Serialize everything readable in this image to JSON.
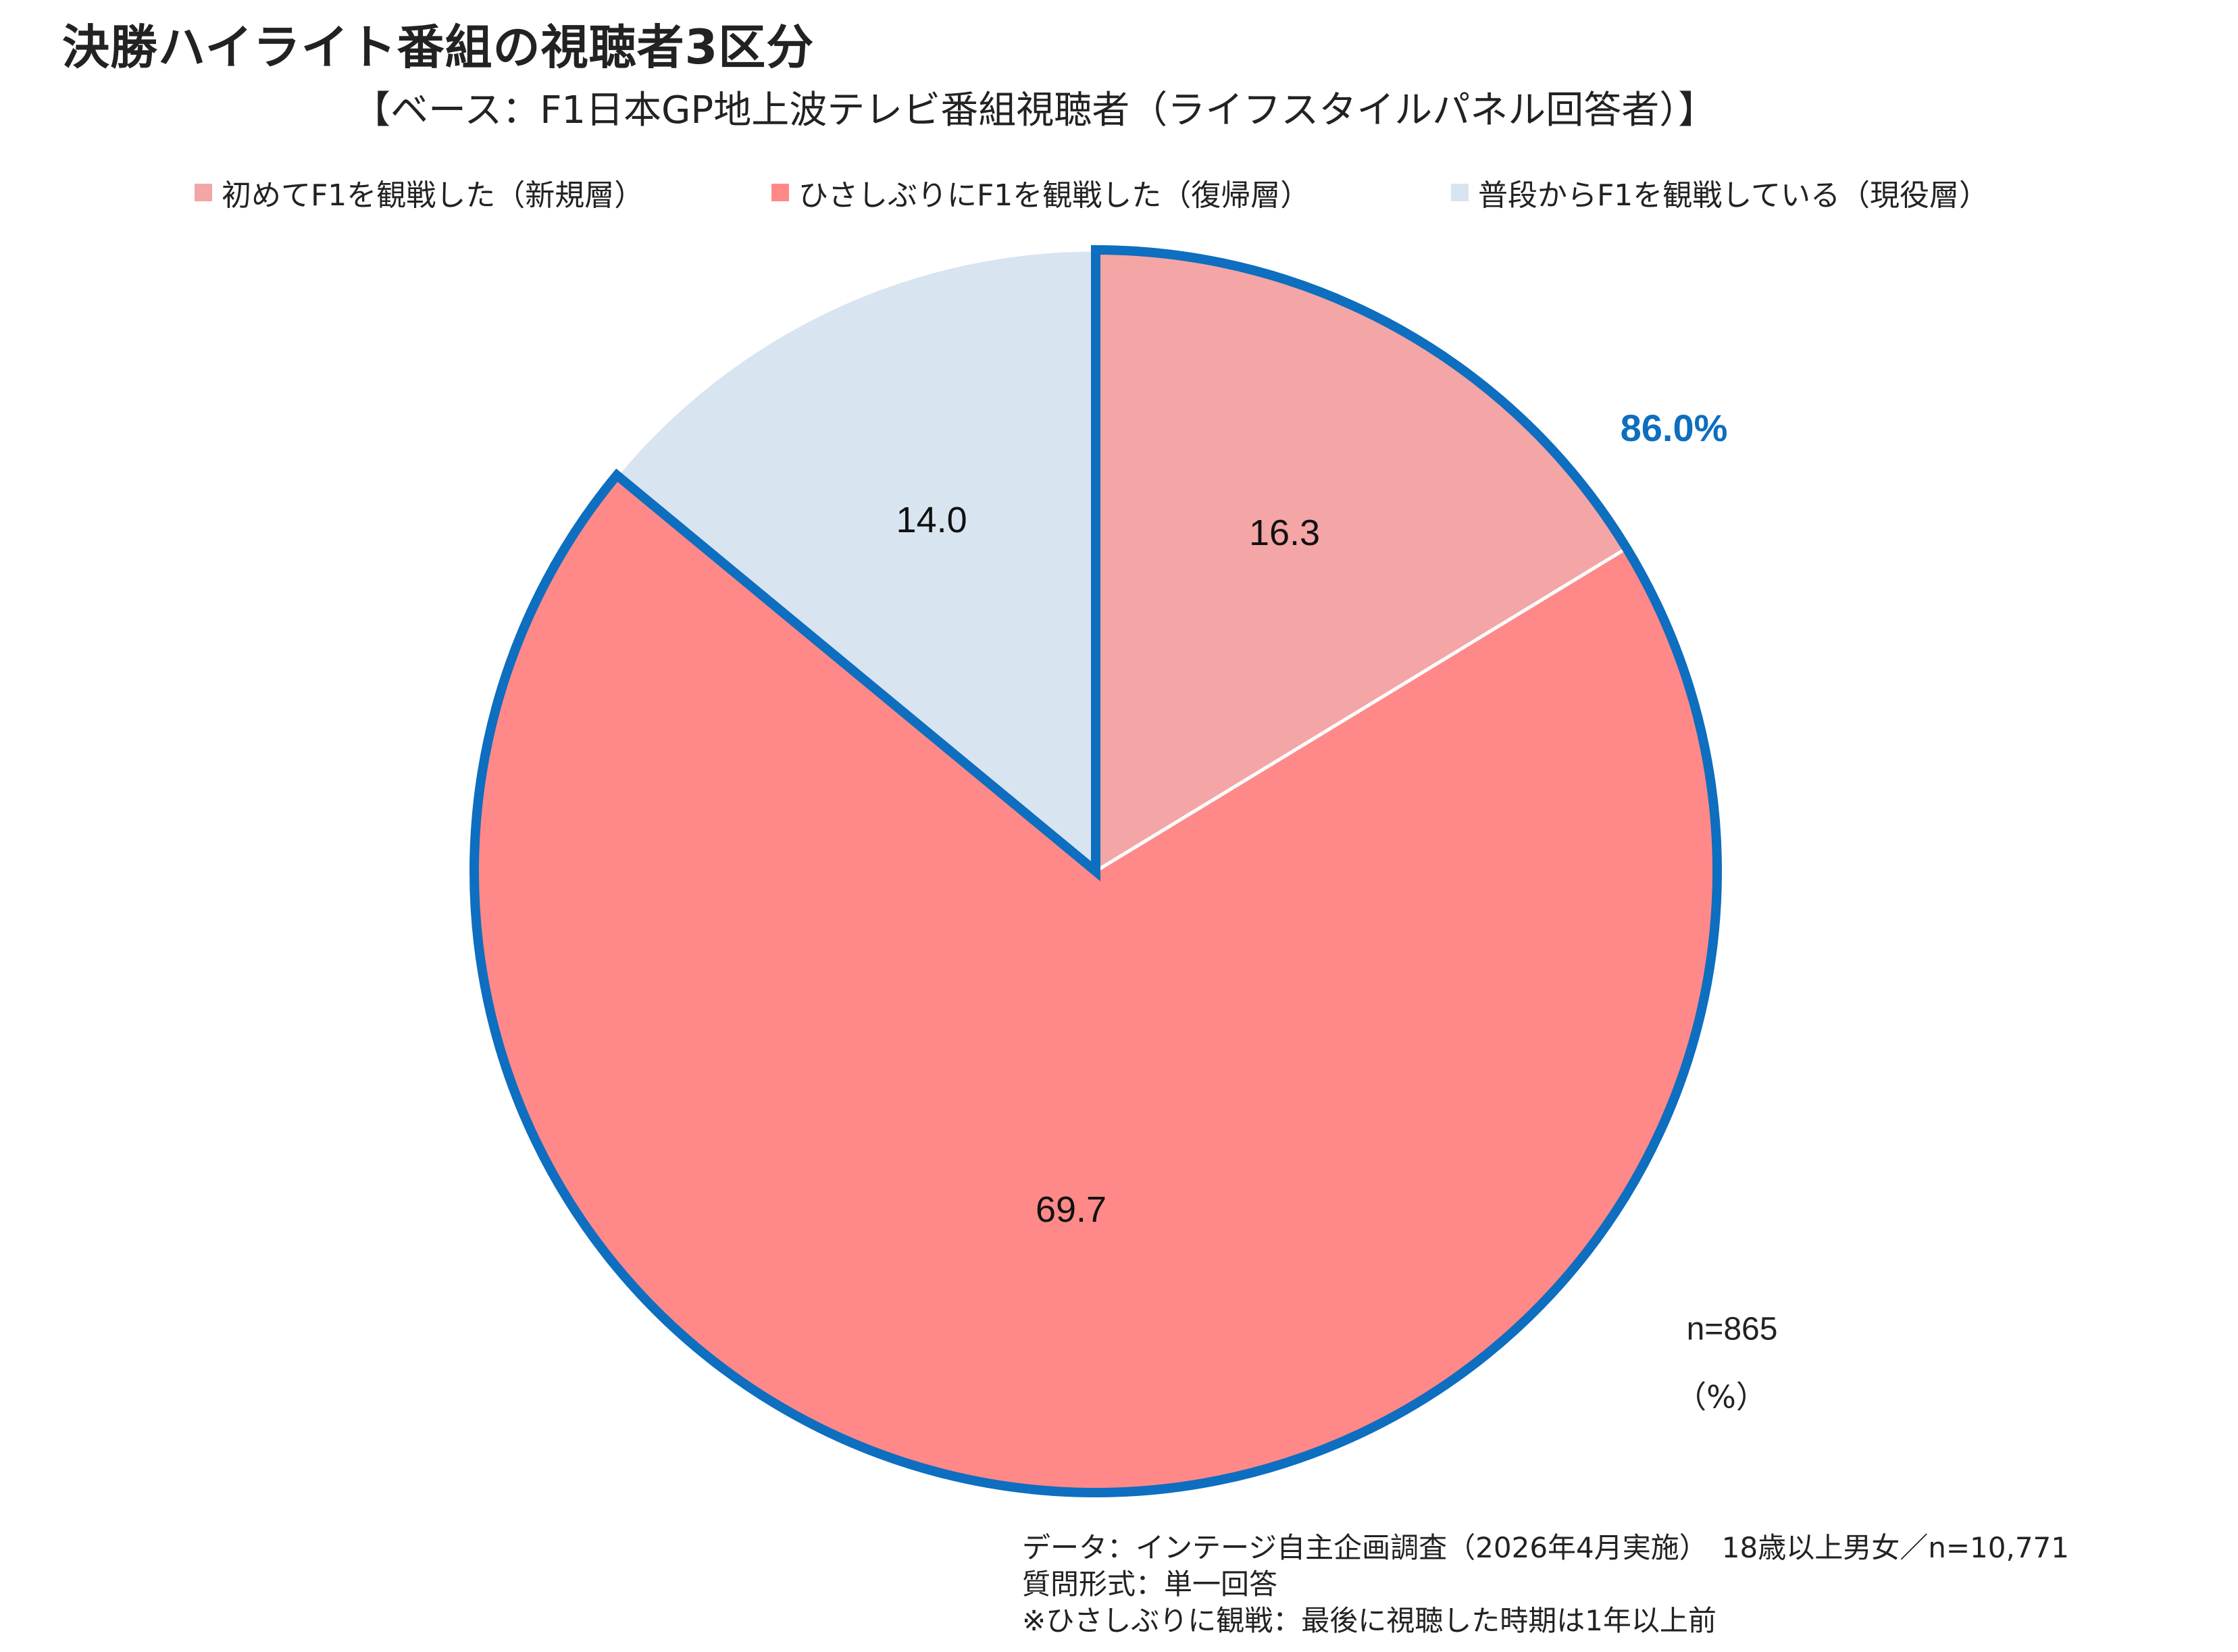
{
  "header": {
    "title": "決勝ハイライト番組の視聴者3区分",
    "subtitle": "【ベース：F1日本GP地上波テレビ番組視聴者（ライフスタイルパネル回答者）】"
  },
  "chart_data": {
    "type": "pie",
    "title": "決勝ハイライト番組の視聴者3区分",
    "unit": "（%）",
    "sample_size": "n=865",
    "categories": [
      "初めてF1を観戦した（新規層）",
      "ひさしぶりにF1を観戦した（復帰層）",
      "普段からF1を観戦している（現役層）"
    ],
    "values": [
      16.3,
      69.7,
      14.0
    ],
    "value_labels": [
      "16.3",
      "69.7",
      "14.0"
    ],
    "colors": [
      "#f4a5a5",
      "#ff8989",
      "#d8e4f0"
    ],
    "start_angle_deg": 0,
    "direction": "clockwise",
    "highlight": {
      "label": "86.0%",
      "includes": [
        "初めてF1を観戦した（新規層）",
        "ひさしぶりにF1を観戦した（復帰層）"
      ],
      "color": "#0e6ebf"
    },
    "legend_position": "top"
  },
  "footer": {
    "lines": [
      "データ：インテージ自主企画調査（2026年4月実施）　18歳以上男女／n=10,771",
      "質問形式：単一回答",
      "※ひさしぶりに観戦：最後に視聴した時期は1年以上前"
    ]
  }
}
